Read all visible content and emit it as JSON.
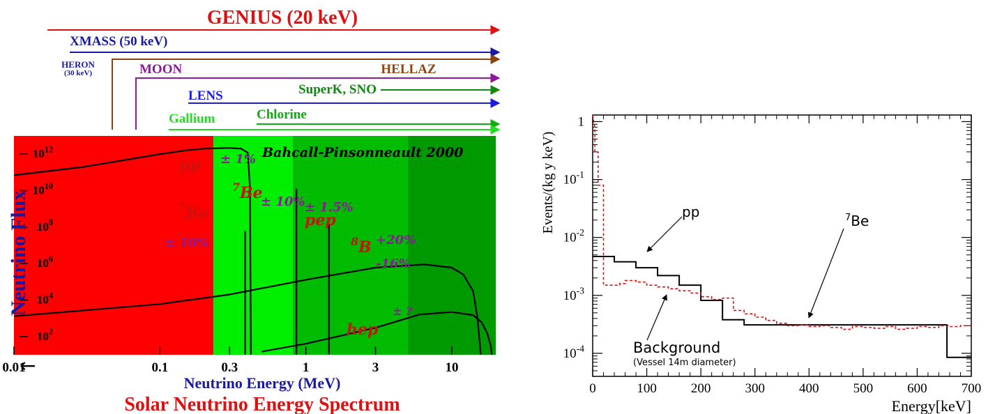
{
  "chart_data": [
    {
      "type": "line",
      "title": "Solar Neutrino Energy Spectrum",
      "subtitle": "Bahcall-Pinsonneault 2000",
      "xlabel": "Neutrino Energy (MeV)",
      "ylabel": "Neutrino Flux",
      "x_scale": "log",
      "y_scale": "log",
      "xlim": [
        0.01,
        20
      ],
      "ylim": [
        10,
        10000000000000
      ],
      "x_ticks": [
        {
          "v": 0.01,
          "label": "0.01"
        },
        {
          "v": 0.1,
          "label": "0.1"
        },
        {
          "v": 0.3,
          "label": "0.3"
        },
        {
          "v": 1,
          "label": "1"
        },
        {
          "v": 3,
          "label": "3"
        },
        {
          "v": 10,
          "label": "10"
        }
      ],
      "y_ticks": [
        {
          "v": 100,
          "base": "10",
          "exp": "2"
        },
        {
          "v": 10000,
          "base": "10",
          "exp": "4"
        },
        {
          "v": 1000000,
          "base": "10",
          "exp": "6"
        },
        {
          "v": 100000000,
          "base": "10",
          "exp": "8"
        },
        {
          "v": 10000000000,
          "base": "10",
          "exp": "10"
        },
        {
          "v": 1000000000000,
          "base": "10",
          "exp": "12"
        }
      ],
      "arrow_label": "←",
      "thresholds": [
        {
          "name": "GENIUS (20 keV)",
          "color": "#dd1111"
        },
        {
          "name": "XMASS (50 keV)",
          "color": "#1a1aa0"
        },
        {
          "name": "HERON",
          "sub": "(30 keV)",
          "color": "#1a1aa0"
        },
        {
          "name": "HELLAZ",
          "color": "#8b4513"
        },
        {
          "name": "MOON",
          "color": "#8b1a9b"
        },
        {
          "name": "SuperK, SNO",
          "color": "#118811"
        },
        {
          "name": "LENS",
          "color": "#1a1ae0"
        },
        {
          "name": "Chlorine",
          "color": "#11aa11"
        },
        {
          "name": "Gallium",
          "color": "#22dd22"
        }
      ],
      "regions": [
        {
          "from": 0.01,
          "to": 0.233,
          "color": "#ff0000"
        },
        {
          "from": 0.233,
          "to": 0.814,
          "color": "#00ee00"
        },
        {
          "from": 0.814,
          "to": 5.0,
          "color": "#00bb00"
        },
        {
          "from": 5.0,
          "to": 20,
          "color": "#009900"
        }
      ],
      "series": [
        {
          "name": "pp",
          "x": [
            0.01,
            0.03,
            0.06,
            0.1,
            0.15,
            0.2,
            0.3,
            0.36,
            0.4,
            0.415,
            0.42
          ],
          "y": [
            70000000000.0,
            200000000000.0,
            500000000000.0,
            1000000000000.0,
            1600000000000.0,
            2000000000000.0,
            2200000000000.0,
            2000000000000.0,
            1200000000000.0,
            10000000000.0,
            10
          ]
        },
        {
          "name": "8B",
          "x": [
            0.01,
            0.1,
            0.3,
            1,
            3,
            6.5,
            10,
            12,
            14,
            15,
            15.8
          ],
          "y": [
            1300.0,
            6000.0,
            20000.0,
            130000.0,
            600000.0,
            900000.0,
            600000.0,
            250000.0,
            30000.0,
            1000.0,
            10
          ]
        },
        {
          "name": "hep",
          "x": [
            0.5,
            1,
            3,
            6,
            10,
            14,
            16,
            17.5,
            18.5,
            18.8
          ],
          "y": [
            15,
            40,
            300,
            1600,
            2200,
            1500,
            600,
            150,
            30,
            10
          ]
        },
        {
          "name": "7Be",
          "x": [
            0.384,
            0.384
          ],
          "y": [
            10,
            60000000.0
          ]
        },
        {
          "name": "7Be",
          "x": [
            0.862,
            0.862
          ],
          "y": [
            10,
            13000000000.0
          ]
        },
        {
          "name": "pep",
          "x": [
            1.44,
            1.44
          ],
          "y": [
            10,
            140000000.0
          ]
        }
      ],
      "labels": [
        {
          "text": "pp",
          "color": "#cc1111"
        },
        {
          "text": "± 1%",
          "color": "#8b1a9b"
        },
        {
          "text": "Be",
          "pre": "7",
          "color": "#cc1111"
        },
        {
          "text": "Be",
          "pre": "7",
          "color": "#cc1111"
        },
        {
          "text": "± 10%",
          "color": "#8b1a9b"
        },
        {
          "text": "± 10%",
          "color": "#8b1a9b"
        },
        {
          "text": "± 1.5%",
          "color": "#8b1a9b"
        },
        {
          "text": "pep",
          "color": "#cc1111"
        },
        {
          "text": "B",
          "pre": "8",
          "color": "#cc1111"
        },
        {
          "text": "+20%",
          "color": "#8b1a9b"
        },
        {
          "text": "-16%",
          "color": "#8b1a9b"
        },
        {
          "text": "hep",
          "color": "#cc1111"
        },
        {
          "text": "± ?",
          "color": "#8b1a9b"
        }
      ]
    },
    {
      "type": "step",
      "xlabel": "Energy[keV]",
      "ylabel": "Events/(kg y keV)",
      "y_scale": "log",
      "xlim": [
        0,
        700
      ],
      "ylim": [
        4e-05,
        1.3
      ],
      "x_ticks": [
        0,
        100,
        200,
        300,
        400,
        500,
        600,
        700
      ],
      "y_ticks": [
        {
          "v": 1,
          "base": "1",
          "exp": ""
        },
        {
          "v": 0.1,
          "base": "10",
          "exp": "-1"
        },
        {
          "v": 0.01,
          "base": "10",
          "exp": "-2"
        },
        {
          "v": 0.001,
          "base": "10",
          "exp": "-3"
        },
        {
          "v": 0.0001,
          "base": "10",
          "exp": "-4"
        }
      ],
      "series": [
        {
          "name": "pp + 7Be",
          "color": "#000000",
          "dash": false,
          "edges": [
            0,
            40,
            80,
            120,
            160,
            200,
            240,
            280,
            655,
            700
          ],
          "values": [
            0.0047,
            0.0038,
            0.003,
            0.0022,
            0.0015,
            0.00082,
            0.00038,
            0.00031,
            8.5e-05
          ]
        },
        {
          "name": "Background",
          "color": "#dd1111",
          "dash": true,
          "edges": [
            0,
            4,
            10,
            20,
            30,
            50,
            60,
            80,
            100,
            120,
            140,
            160,
            180,
            200,
            220,
            240,
            260,
            280,
            300,
            320,
            340,
            360,
            380,
            400,
            420,
            440,
            460,
            480,
            500,
            520,
            540,
            560,
            580,
            600,
            620,
            640,
            660,
            680,
            700
          ],
          "values": [
            0.8,
            0.3,
            0.08,
            0.0015,
            0.0015,
            0.0016,
            0.0018,
            0.0017,
            0.0015,
            0.0014,
            0.0013,
            0.0012,
            0.0011,
            0.00095,
            0.00085,
            0.0009,
            0.00055,
            0.00048,
            0.00042,
            0.00037,
            0.00033,
            0.0003,
            0.00031,
            0.00029,
            0.0003,
            0.00028,
            0.00026,
            0.00029,
            0.00028,
            0.00027,
            0.00029,
            0.00026,
            0.00027,
            0.00029,
            0.00028,
            0.0003,
            0.00029,
            0.0003
          ]
        }
      ],
      "annotations": [
        {
          "text": "pp"
        },
        {
          "text": "Be",
          "pre": "7"
        },
        {
          "text": "Background"
        },
        {
          "text": "(Vessel 14m diameter)"
        }
      ]
    }
  ]
}
